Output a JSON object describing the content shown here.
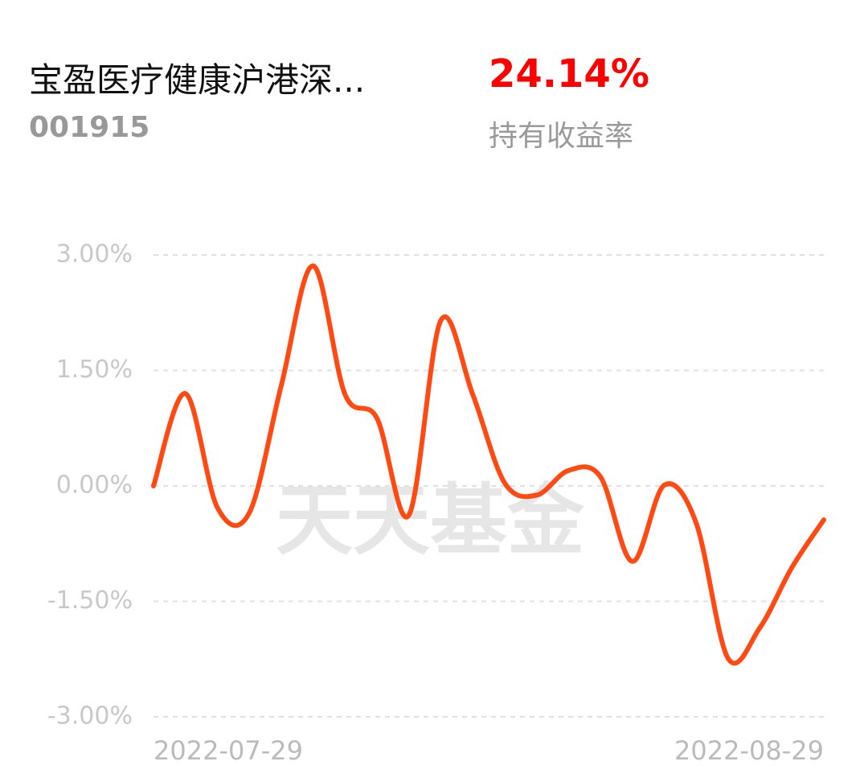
{
  "header": {
    "fund_name": "宝盈医疗健康沪港深...",
    "fund_code": "001915",
    "holding_return": "24.14%",
    "holding_return_label": "持有收益率"
  },
  "chart_data": {
    "type": "line",
    "watermark": "天天基金",
    "categories": [
      "2022-07-29",
      null,
      null,
      null,
      null,
      null,
      null,
      null,
      null,
      null,
      null,
      null,
      null,
      null,
      null,
      null,
      null,
      null,
      null,
      null,
      null,
      "2022-08-29"
    ],
    "series": [
      {
        "name": "收益率",
        "color": "#ff4a14",
        "values": [
          0.0,
          1.2,
          -0.28,
          -0.35,
          1.3,
          2.86,
          1.19,
          0.88,
          -0.38,
          2.15,
          1.19,
          0.04,
          -0.12,
          0.2,
          0.12,
          -0.98,
          0.01,
          -0.48,
          -2.24,
          -1.84,
          -1.06,
          -0.44
        ]
      }
    ],
    "ylim": [
      -3,
      3
    ],
    "yticks": [
      {
        "value": -3,
        "label": "-3.00%"
      },
      {
        "value": -1.5,
        "label": "-1.50%"
      },
      {
        "value": 0,
        "label": "0.00%"
      },
      {
        "value": 1.5,
        "label": "1.50%"
      },
      {
        "value": 3,
        "label": "3.00%"
      }
    ],
    "grid": true
  }
}
